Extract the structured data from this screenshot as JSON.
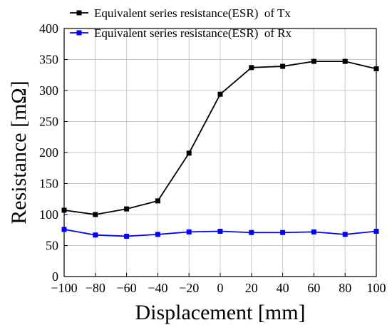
{
  "chart_data": {
    "type": "line",
    "xlabel": "Displacement [mm]",
    "ylabel": "Resistance [mΩ]",
    "xlim": [
      -100,
      100
    ],
    "ylim": [
      0,
      400
    ],
    "xticks": [
      -100,
      -80,
      -60,
      -40,
      -20,
      0,
      20,
      40,
      60,
      80,
      100
    ],
    "yticks": [
      0,
      50,
      100,
      150,
      200,
      250,
      300,
      350,
      400
    ],
    "xtick_labels": [
      "−100",
      "−80",
      "−60",
      "−40",
      "−20",
      "0",
      "20",
      "40",
      "60",
      "80",
      "100"
    ],
    "ytick_labels": [
      "0",
      "50",
      "100",
      "150",
      "200",
      "250",
      "300",
      "350",
      "400"
    ],
    "grid": true,
    "legend_position": "top-left",
    "x": [
      -100,
      -80,
      -60,
      -40,
      -20,
      0,
      20,
      40,
      60,
      80,
      100
    ],
    "series": [
      {
        "name": "Equivalent series resistance(ESR)  of Tx",
        "color": "#000000",
        "marker": "square",
        "values": [
          107,
          100,
          109,
          122,
          199,
          294,
          337,
          339,
          347,
          347,
          335
        ]
      },
      {
        "name": "Equivalent series resistance(ESR)  of Rx",
        "color": "#0000ff",
        "marker": "square",
        "values": [
          76,
          67,
          65,
          68,
          72,
          73,
          71,
          71,
          72,
          68,
          73
        ]
      }
    ]
  }
}
